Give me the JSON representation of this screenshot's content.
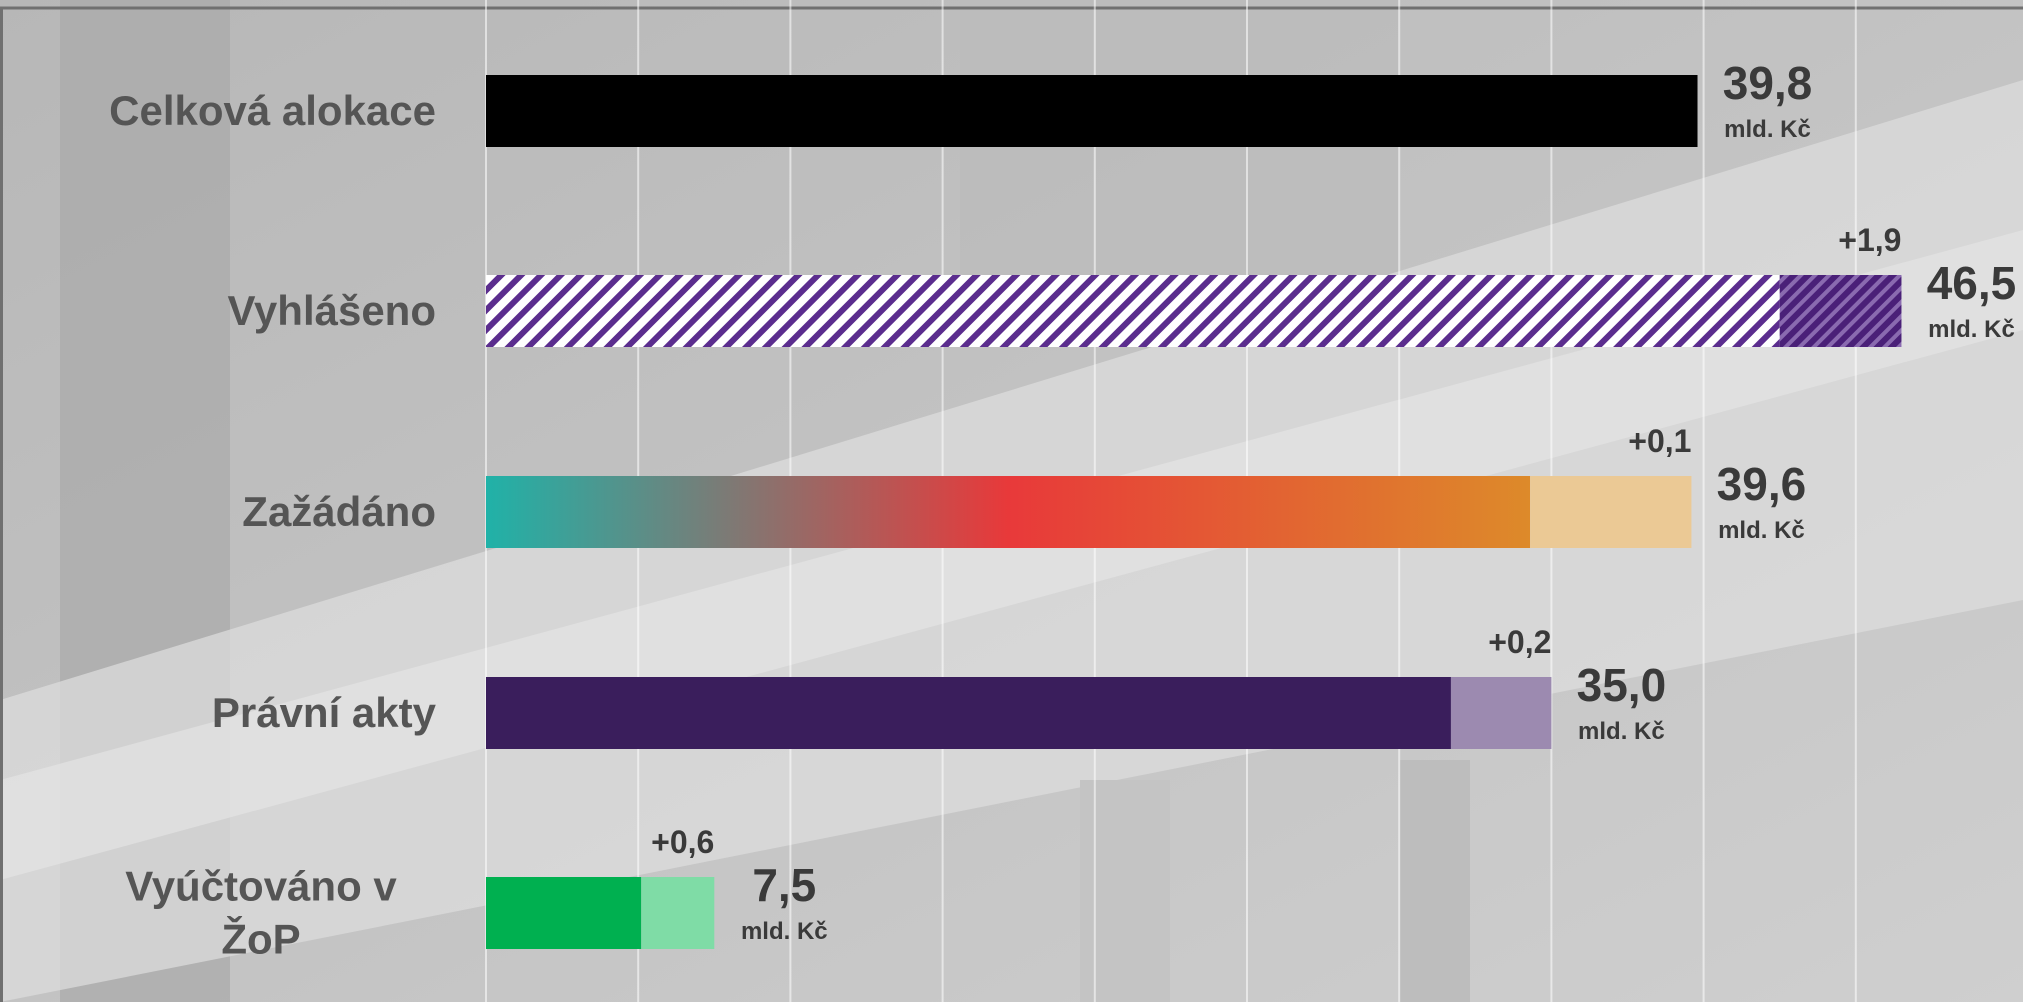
{
  "chart_data": {
    "type": "bar",
    "orientation": "horizontal",
    "stacked": true,
    "categories": [
      "Celková alokace",
      "Vyhlášeno",
      "Zažádáno",
      "Právní akty",
      "Vyúčtováno v ŽoP"
    ],
    "series": [
      {
        "colors": [
          "#000000",
          "#5b2d8e",
          "#e8393a",
          "#3a1e5c",
          "#00b050"
        ],
        "styles": [
          "solid",
          "hatch",
          "gradient",
          "solid",
          "solid"
        ],
        "values": [
          39.8,
          42.5,
          34.3,
          31.7,
          5.1
        ]
      },
      {
        "colors": [
          null,
          "#5b2d8e",
          "#ebc995",
          "#9c8ab0",
          "#7fdca6"
        ],
        "styles": [
          null,
          "hatch-dense",
          "solid",
          "solid",
          "solid"
        ],
        "values": [
          null,
          4.0,
          5.3,
          3.3,
          2.4
        ]
      }
    ],
    "gradient": [
      "#20b2a8",
      "#e8393a",
      "#dd8a2a"
    ],
    "totals": [
      39.8,
      46.5,
      39.6,
      35.0,
      7.5
    ],
    "total_labels": [
      "39,8",
      "46,5",
      "39,6",
      "35,0",
      "7,5"
    ],
    "unit": "mld. Kč",
    "deltas": [
      null,
      1.9,
      0.1,
      0.2,
      0.6
    ],
    "delta_labels": [
      null,
      "+1,9",
      "+0,1",
      "+0,2",
      "+0,6"
    ],
    "xlim": [
      0,
      50
    ],
    "xticks": [
      0,
      5,
      10,
      15,
      20,
      25,
      30,
      35,
      40,
      45
    ],
    "grid": true
  }
}
